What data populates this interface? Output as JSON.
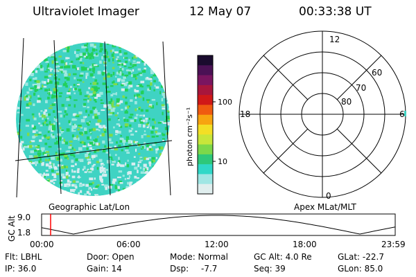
{
  "header": {
    "title": "Ultraviolet Imager",
    "date": "12 May 07",
    "time": "00:33:38 UT"
  },
  "imager": {
    "caption": "Geographic Lat/Lon",
    "colors": {
      "base": "#3fd3c3",
      "speckle_high": "#22d05a",
      "speckle_mid": "#7fdc4a",
      "speckle_low": "#9fe8e0",
      "speckle_faint": "#d8ecf0"
    }
  },
  "colorbar": {
    "unit_label": "photon cm⁻²s⁻¹",
    "ticks": [
      "100",
      "10"
    ],
    "colors": [
      "#1a0b2e",
      "#4b1155",
      "#7a1560",
      "#a8163c",
      "#d01818",
      "#ef5a10",
      "#f7a410",
      "#f3df25",
      "#c8e63a",
      "#7cd84a",
      "#2ec87a",
      "#30d8c8",
      "#a0e6e4",
      "#e0eeee"
    ]
  },
  "polar": {
    "caption": "Apex MLat/MLT",
    "mlt_labels": {
      "top": "12",
      "left": "18",
      "right": "6",
      "bottom": "0"
    },
    "lat_labels": [
      "80",
      "70",
      "60"
    ]
  },
  "altitude_plot": {
    "ylabel": "GC Alt",
    "y_ticks": [
      "9.0",
      "1.8"
    ],
    "x_ticks": [
      "00:00",
      "06:00",
      "12:00",
      "18:00",
      "23:59"
    ],
    "cursor_color": "#ff0000"
  },
  "footer": {
    "row1": {
      "flt": "Flt: LBHL",
      "door": "Door: Open",
      "mode": "Mode: Normal",
      "gcalt": "GC Alt: 4.0 Re",
      "glat": "GLat: -22.7"
    },
    "row2": {
      "ip": "IP: 36.0",
      "gain": "Gain: 14",
      "dsp_label": "Dsp:",
      "dsp_value": "-7.7",
      "seq": "Seq: 39",
      "glon": "GLon: 85.0"
    }
  }
}
